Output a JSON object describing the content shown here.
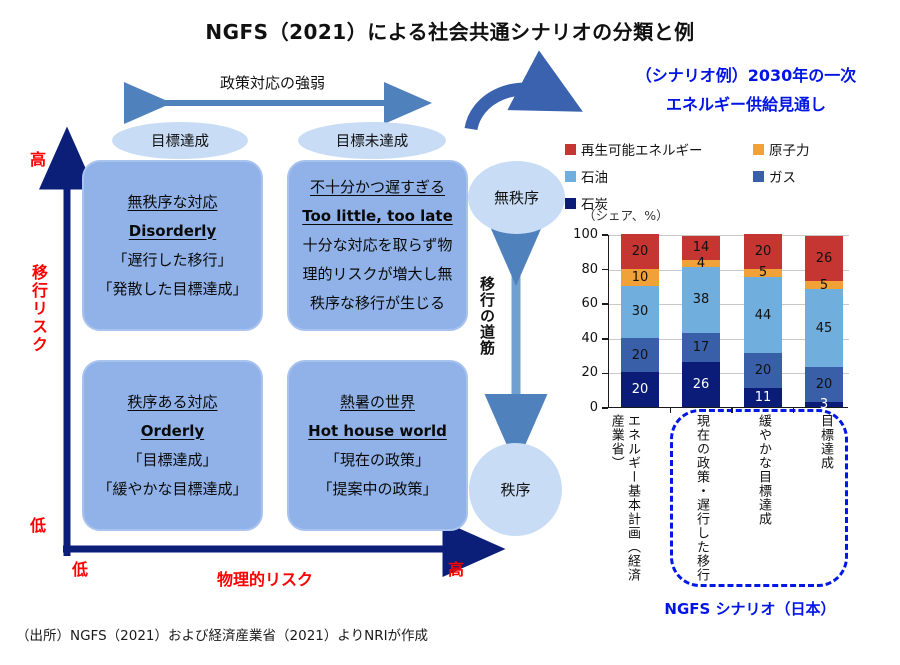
{
  "page": {
    "title": "NGFS（2021）による社会共通シナリオの分類と例",
    "source": "（出所）NGFS（2021）および経済産業省（2021）よりNRIが作成"
  },
  "matrix": {
    "policy_axis_label": "政策対応の強弱",
    "goal_achieved": "目標達成",
    "goal_not_achieved": "目標未達成",
    "transition_risk": {
      "high": "高",
      "label": "移行リスク",
      "low": "低"
    },
    "physical_risk": {
      "low": "低",
      "label": "物理的リスク",
      "high": "高"
    },
    "quadrants": {
      "disorderly": {
        "title_ja": "無秩序な対応",
        "title_en": "Disorderly",
        "line1": "「遅行した移行」",
        "line2": "「発散した目標達成」"
      },
      "too_little": {
        "title_ja": "不十分かつ遅すぎる",
        "title_en": "Too little, too late",
        "line1": "十分な対応を取らず物",
        "line2": "理的リスクが増大し無",
        "line3": "秩序な移行が生じる"
      },
      "orderly": {
        "title_ja": "秩序ある対応",
        "title_en": "Orderly",
        "line1": "「目標達成」",
        "line2": "「緩やかな目標達成」"
      },
      "hot_house": {
        "title_ja": "熱暑の世界",
        "title_en": "Hot house world",
        "line1": "「現在の政策」",
        "line2": "「提案中の政策」"
      }
    },
    "transition_path": {
      "top_circle": "無秩序",
      "arrow_label": "移行の道筋",
      "bottom_circle": "秩序"
    }
  },
  "scenario_chart": {
    "title_line1": "（シナリオ例）2030年の一次",
    "title_line2": "エネルギー供給見通し",
    "unit": "（シェア、%）",
    "ngfs_label": "NGFS シナリオ（日本）"
  },
  "chart_data": {
    "type": "bar",
    "stacked": true,
    "title": "（シナリオ例）2030年の一次エネルギー供給見通し",
    "ylabel": "（シェア、%）",
    "ylim": [
      0,
      100
    ],
    "yticks": [
      0,
      20,
      40,
      60,
      80,
      100
    ],
    "grid": true,
    "legend_position": "top",
    "categories": [
      "エネルギー基本計画（経済産業省）",
      "現在の政策・遅行した移行",
      "緩やかな目標達成",
      "目標達成"
    ],
    "series": [
      {
        "name": "石炭",
        "color": "#0a1c78",
        "label_color": "#ffffff",
        "values": [
          20,
          26,
          11,
          3
        ]
      },
      {
        "name": "ガス",
        "color": "#3a5fa9",
        "label_color": "#111111",
        "values": [
          20,
          17,
          20,
          20
        ]
      },
      {
        "name": "石油",
        "color": "#6faedd",
        "label_color": "#111111",
        "values": [
          30,
          38,
          44,
          45
        ]
      },
      {
        "name": "原子力",
        "color": "#f0a239",
        "label_color": "#111111",
        "values": [
          10,
          4,
          5,
          5
        ]
      },
      {
        "name": "再生可能エネルギー",
        "color": "#c53531",
        "label_color": "#111111",
        "values": [
          20,
          14,
          20,
          26
        ]
      }
    ],
    "legend_order": [
      "再生可能エネルギー",
      "原子力",
      "石油",
      "ガス",
      "石炭"
    ]
  },
  "colors": {
    "quadrant_fill": "#90b2e8",
    "ellipse_fill": "#c8dcf6",
    "steel_arrow": "#4f81bd",
    "navy_axis": "#0b1e78",
    "red_axis_text": "#ff0000",
    "blue_text": "#0014e6",
    "curved_arrow": "#3a62ae",
    "dashed_box": "#0018e6"
  }
}
